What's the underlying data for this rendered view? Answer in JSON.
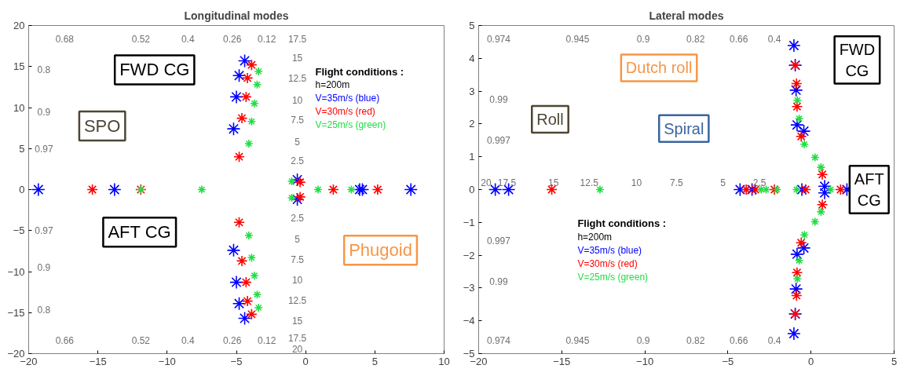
{
  "chart_data": [
    {
      "type": "scatter",
      "title": "Longitudinal modes",
      "xlim": [
        -20,
        10
      ],
      "ylim": [
        -20,
        20
      ],
      "xticks": [
        -20,
        -15,
        -10,
        -5,
        0,
        5,
        10
      ],
      "yticks": [
        -20,
        -15,
        -10,
        -5,
        0,
        5,
        10,
        15,
        20
      ],
      "grid": false,
      "marker": "cross",
      "legend": "top right",
      "legend_title": "Flight conditions :",
      "series": [
        {
          "name": "V=35m/s (blue)",
          "color": "#0000ff",
          "x": [
            -4.4,
            -4.8,
            -5.0,
            -5.2,
            -4.4,
            -4.8,
            -5.0,
            -5.2,
            -19.3,
            -13.8,
            3.9,
            4.1,
            7.6,
            -0.6,
            -0.6
          ],
          "values": [
            15.7,
            13.9,
            11.3,
            7.4,
            -15.7,
            -13.9,
            -11.3,
            -7.4,
            0,
            0,
            0,
            0,
            0,
            1.2,
            -1.2
          ]
        },
        {
          "name": "V=30m/s (red)",
          "color": "#ff0000",
          "x": [
            -3.9,
            -4.2,
            -4.3,
            -4.6,
            -4.8,
            -3.9,
            -4.2,
            -4.3,
            -4.6,
            -4.8,
            -15.4,
            -11.9,
            2.0,
            5.2,
            -0.4,
            -0.4
          ],
          "values": [
            15.2,
            13.6,
            11.3,
            8.7,
            4.0,
            -15.2,
            -13.6,
            -11.3,
            -8.7,
            -4.0,
            0,
            0,
            0,
            0,
            0.9,
            -0.9
          ]
        },
        {
          "name": "V=25m/s (green)",
          "color": "#22dd44",
          "x": [
            -3.4,
            -3.5,
            -3.7,
            -3.9,
            -4.1,
            -3.4,
            -3.5,
            -3.7,
            -3.9,
            -4.1,
            -11.9,
            -7.5,
            0.9,
            3.3,
            -1.0,
            -1.0
          ],
          "values": [
            14.4,
            12.8,
            10.5,
            8.3,
            5.6,
            -14.4,
            -12.8,
            -10.5,
            -8.3,
            -5.6,
            0,
            0,
            0,
            0,
            1.0,
            -1.0
          ]
        }
      ],
      "annotations": [
        "FWD CG",
        "SPO",
        "AFT CG",
        "Phugoid",
        "h=200m",
        "0.68",
        "0.52",
        "0.4",
        "0.26",
        "0.12",
        "17.5",
        "0.8",
        "0.9",
        "0.97",
        "0.97",
        "0.9",
        "0.8",
        "0.66",
        "0.52",
        "0.4",
        "0.26",
        "0.12",
        "17.5",
        "15",
        "12.5",
        "10",
        "7.5",
        "5",
        "2.5",
        "2.5",
        "5",
        "7.5",
        "10",
        "12.5",
        "15",
        "20"
      ]
    },
    {
      "type": "scatter",
      "title": "Lateral modes",
      "xlim": [
        -20,
        5
      ],
      "ylim": [
        -5,
        5
      ],
      "xticks": [
        -20,
        -15,
        -10,
        -5,
        0,
        5
      ],
      "yticks": [
        -5,
        -4,
        -3,
        -2,
        -1,
        0,
        1,
        2,
        3,
        4,
        5
      ],
      "grid": false,
      "marker": "cross",
      "legend": "bottom",
      "legend_title": "Flight conditions :",
      "series": [
        {
          "name": "V=35m/s (blue)",
          "color": "#0000ff",
          "x": [
            -19.0,
            -18.2,
            -4.27,
            -3.55,
            -0.55,
            -1.03,
            -0.95,
            -0.9,
            -0.84,
            -0.43,
            -1.03,
            -0.95,
            -0.9,
            -0.84,
            -0.43,
            0.82,
            0.82,
            2.16
          ],
          "values": [
            0,
            0,
            0,
            0,
            0,
            4.39,
            3.79,
            3.03,
            1.97,
            1.78,
            -4.39,
            -3.79,
            -3.03,
            -1.97,
            -1.78,
            0.1,
            -0.1,
            0
          ]
        },
        {
          "name": "V=30m/s (red)",
          "color": "#ff0000",
          "x": [
            -15.6,
            -3.9,
            -3.35,
            -2.2,
            -0.33,
            -0.95,
            -0.87,
            -0.84,
            -0.59,
            -0.95,
            -0.87,
            -0.84,
            -0.59,
            0.68,
            0.68,
            1.78
          ],
          "values": [
            0,
            0,
            0,
            0,
            0,
            3.79,
            3.23,
            2.53,
            1.62,
            -3.79,
            -3.23,
            -2.53,
            -1.62,
            0.46,
            -0.46,
            0
          ]
        },
        {
          "name": "V=25m/s (green)",
          "color": "#22dd44",
          "x": [
            -12.7,
            -3.0,
            -2.7,
            -2.05,
            -0.87,
            -0.82,
            -0.71,
            -0.4,
            -0.82,
            -0.71,
            -0.4,
            0.24,
            0.24,
            0.6,
            0.6,
            1.18
          ],
          "values": [
            0,
            0,
            0,
            0,
            0,
            2.72,
            2.16,
            1.38,
            -2.72,
            -2.16,
            -1.38,
            0.98,
            -0.98,
            0.68,
            -0.68,
            0
          ]
        }
      ],
      "annotations": [
        "Dutch roll",
        "FWD CG",
        "Roll",
        "Spiral",
        "AFT CG",
        "h=200m",
        "0.974",
        "0.945",
        "0.9",
        "0.82",
        "0.66",
        "0.4",
        "0.99",
        "0.997",
        "0.997",
        "0.99",
        "0.974",
        "0.945",
        "0.9",
        "0.82",
        "0.66",
        "0.4",
        "20",
        "17.5",
        "15",
        "12.5",
        "10",
        "7.5",
        "5",
        "2.5"
      ]
    }
  ]
}
